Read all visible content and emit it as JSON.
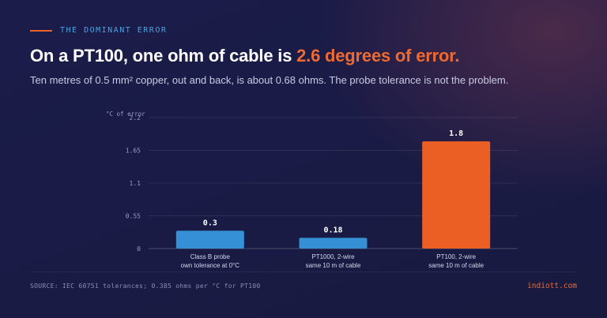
{
  "eyebrow": "THE DOMINANT ERROR",
  "headline": {
    "prefix": "On a PT100, one ohm of cable is ",
    "highlight": "2.6 degrees of error."
  },
  "subtitle": "Ten metres of 0.5 mm² copper, out and back, is about 0.68 ohms. The probe tolerance is not the problem.",
  "colors": {
    "blue": "#3590d6",
    "orange": "#ec5f24",
    "accent": "#ee6a30"
  },
  "chart_data": {
    "type": "bar",
    "ylabel": "°C of error",
    "ylim": [
      0,
      2.2
    ],
    "yticks": [
      0,
      0.55,
      1.1,
      1.65,
      2.2
    ],
    "grid": true,
    "categories": [
      [
        "Class B probe",
        "own tolerance at 0°C"
      ],
      [
        "PT1000, 2-wire",
        "same 10 m of cable"
      ],
      [
        "PT100, 2-wire",
        "same 10 m of cable"
      ]
    ],
    "values": [
      0.3,
      0.18,
      1.8
    ],
    "value_labels": [
      "0.3",
      "0.18",
      "1.8"
    ],
    "bar_colors": [
      "blue",
      "blue",
      "orange"
    ]
  },
  "source": "SOURCE: IEC 60751 tolerances; 0.385 ohms per °C for PT100",
  "brand": "indiott.com"
}
